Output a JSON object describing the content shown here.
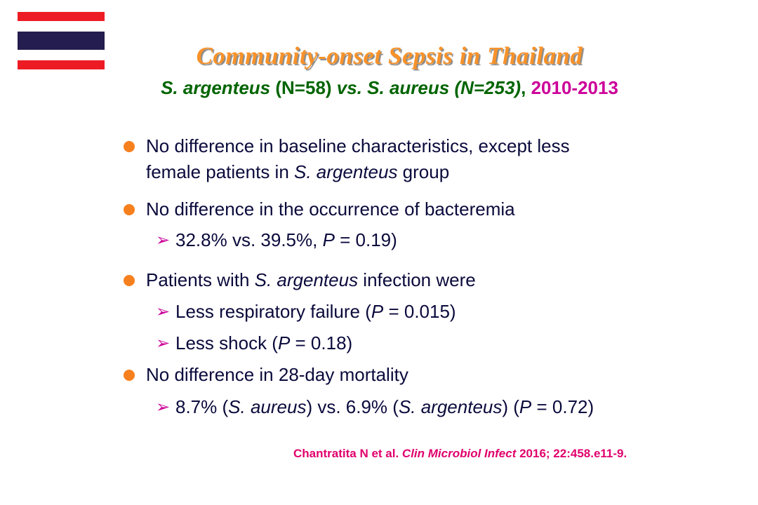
{
  "flag": {
    "icon": "thailand-flag-icon",
    "colors": {
      "red": "#ED1C24",
      "white": "#FFFFFF",
      "blue": "#241D4F"
    }
  },
  "title": "Community-onset Sepsis in Thailand",
  "subtitle": {
    "part1": "S. argenteus",
    "part2": " (N=58) ",
    "part3": "vs. S. aureus (N=253)",
    "part4": ",",
    "part5": " 2010-2013"
  },
  "bullets": [
    {
      "line1": "No difference in baseline characteristics, except less",
      "line2_pre": "female patients in ",
      "line2_it": "S. argenteus",
      "line2_post": " group"
    },
    {
      "text": "No difference in the occurrence of bacteremia",
      "sub": {
        "pre": "32.8% vs. 39.5%, ",
        "it": "P",
        "post": " = 0.19)"
      }
    },
    {
      "pre": "Patients with ",
      "it": "S. argenteus",
      "post": " infection were",
      "subs": [
        {
          "pre": "Less respiratory failure (",
          "it": "P",
          "post": " = 0.015)"
        },
        {
          "pre": "Less shock (",
          "it": "P",
          "post": " = 0.18)"
        }
      ]
    },
    {
      "text": "No difference in 28-day mortality",
      "sub": {
        "a": "8.7% (",
        "b": "S. aureus",
        "c": ") vs. 6.9% (",
        "d": "S. argenteus",
        "e": ") (",
        "f": "P",
        "g": " = 0.72)"
      }
    }
  ],
  "citation": {
    "pre": "Chantratita N et al. ",
    "journal": "Clin Microbiol Infect",
    "post": " 2016; 22:458.e11-9."
  },
  "colors": {
    "title": "#f7922a",
    "subtitle_green": "#006400",
    "accent_magenta": "#cc0099",
    "bullet_orange": "#f7801e",
    "citation": "#e0006c",
    "body_text": "#0a0a3c"
  }
}
